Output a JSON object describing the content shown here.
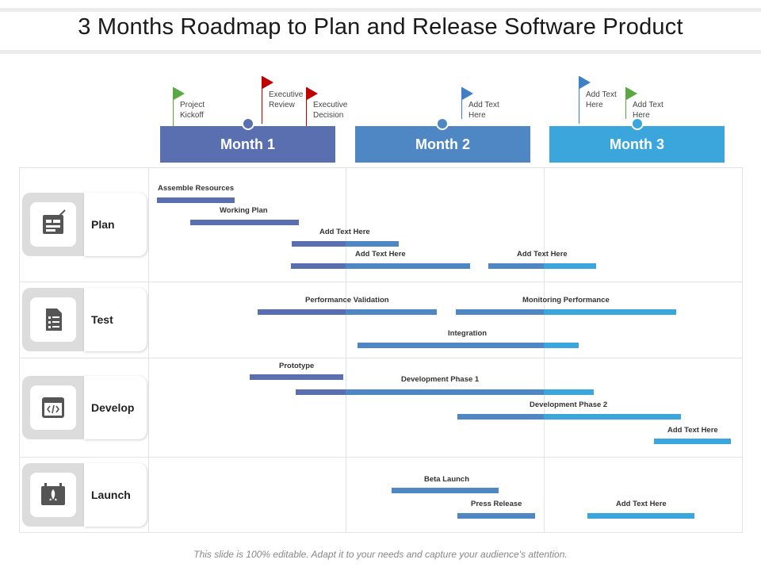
{
  "title": "3 Months Roadmap to Plan and Release Software Product",
  "months": [
    "Month 1",
    "Month 2",
    "Month 3"
  ],
  "colors": {
    "month1": "#5a6fb0",
    "month2": "#4f87c4",
    "month3": "#3aa6db",
    "bar_dark": "#5a6fb0",
    "bar_mid": "#4f87c4",
    "bar_light": "#3aa6db",
    "flag_green": "#5aa843",
    "flag_red": "#c00000",
    "flag_blue": "#3f7fc3"
  },
  "milestones": [
    {
      "label": "Project Kickoff",
      "color": "green"
    },
    {
      "label": "Executive Review",
      "color": "red"
    },
    {
      "label": "Executive Decision",
      "color": "red"
    },
    {
      "label": "Add Text Here",
      "color": "blue"
    },
    {
      "label": "Add Text Here",
      "color": "blue"
    },
    {
      "label": "Add Text Here",
      "color": "green"
    }
  ],
  "lanes": [
    {
      "name": "Plan",
      "icon": "blueprint-icon"
    },
    {
      "name": "Test",
      "icon": "checklist-icon"
    },
    {
      "name": "Develop",
      "icon": "code-window-icon"
    },
    {
      "name": "Launch",
      "icon": "rocket-calendar-icon"
    }
  ],
  "tasks": [
    {
      "lane": "Plan",
      "label": "Assemble Resources"
    },
    {
      "lane": "Plan",
      "label": "Working Plan"
    },
    {
      "lane": "Plan",
      "label": "Add Text Here"
    },
    {
      "lane": "Plan",
      "label": "Add Text Here"
    },
    {
      "lane": "Plan",
      "label": "Add Text Here"
    },
    {
      "lane": "Test",
      "label": "Performance Validation"
    },
    {
      "lane": "Test",
      "label": "Monitoring Performance"
    },
    {
      "lane": "Test",
      "label": "Integration"
    },
    {
      "lane": "Develop",
      "label": "Prototype"
    },
    {
      "lane": "Develop",
      "label": "Development Phase 1"
    },
    {
      "lane": "Develop",
      "label": "Development Phase 2"
    },
    {
      "lane": "Develop",
      "label": "Add Text Here"
    },
    {
      "lane": "Launch",
      "label": "Beta Launch"
    },
    {
      "lane": "Launch",
      "label": "Press Release"
    },
    {
      "lane": "Launch",
      "label": "Add Text Here"
    }
  ],
  "footer": "This slide is 100% editable. Adapt it to your needs and capture your audience's attention."
}
